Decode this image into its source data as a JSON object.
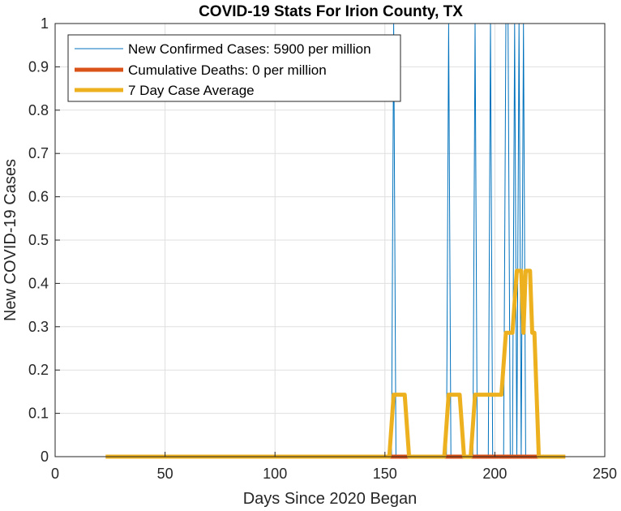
{
  "chart_data": {
    "type": "line",
    "title": "COVID-19 Stats For Irion County, TX",
    "xlabel": "Days Since 2020 Began",
    "ylabel": "New COVID-19 Cases",
    "xlim": [
      0,
      250
    ],
    "ylim": [
      0,
      1
    ],
    "xticks": [
      "0",
      "50",
      "100",
      "150",
      "200",
      "250"
    ],
    "yticks": [
      "0",
      "0.1",
      "0.2",
      "0.3",
      "0.4",
      "0.5",
      "0.6",
      "0.7",
      "0.8",
      "0.9",
      "1"
    ],
    "grid": true,
    "legend_position": "top-left",
    "series": [
      {
        "name": "New Confirmed Cases: 5900 per million",
        "color": "#0072BD",
        "style": "thin",
        "x": [
          23,
          153,
          154,
          155,
          178,
          179,
          180,
          190,
          191,
          192,
          197,
          198,
          199,
          204,
          205,
          206,
          207,
          208,
          209,
          210,
          211,
          212,
          213,
          214,
          215,
          232
        ],
        "y": [
          0,
          0,
          1,
          0,
          0,
          1,
          0,
          0,
          1,
          0,
          0,
          1,
          0,
          0,
          1,
          1,
          0,
          0,
          1,
          0,
          1,
          0,
          1,
          0,
          0,
          0
        ]
      },
      {
        "name": "Cumulative Deaths: 0 per million",
        "color": "#D95319",
        "style": "thick",
        "x": [
          23,
          232
        ],
        "y": [
          0,
          0
        ]
      },
      {
        "name": "7 Day Case Average",
        "color": "#EDB120",
        "style": "thick",
        "x": [
          23,
          152,
          154,
          159,
          161,
          177,
          179,
          184,
          186,
          189,
          191,
          203,
          205,
          207,
          208,
          210,
          212,
          213,
          214,
          216,
          217,
          218,
          219,
          220,
          232
        ],
        "y": [
          0,
          0,
          0.143,
          0.143,
          0,
          0,
          0.143,
          0.143,
          0,
          0,
          0.143,
          0.143,
          0.286,
          0.286,
          0.286,
          0.429,
          0.429,
          0.286,
          0.429,
          0.429,
          0.286,
          0.286,
          0.143,
          0,
          0
        ]
      }
    ]
  }
}
